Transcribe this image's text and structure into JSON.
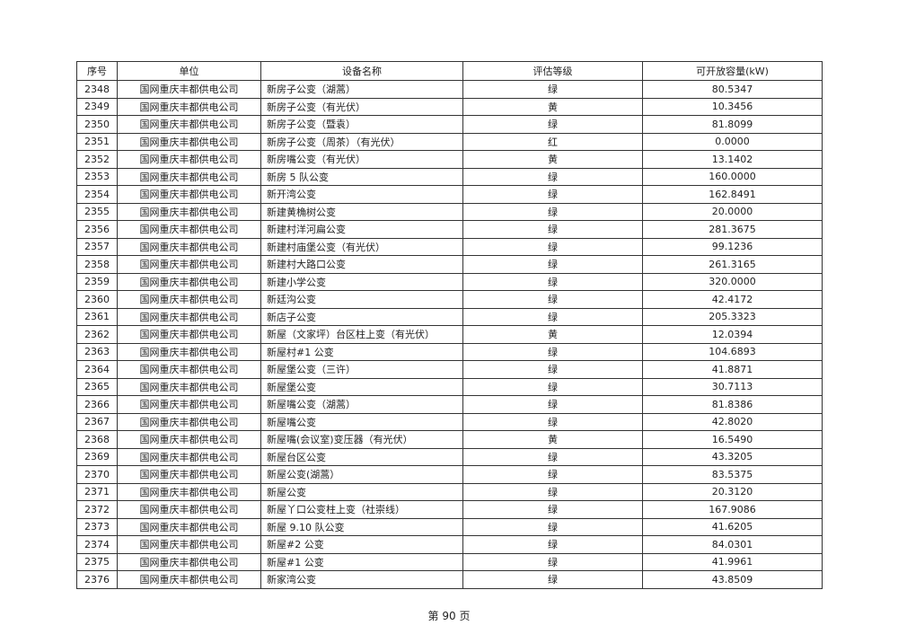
{
  "table": {
    "headers": [
      "序号",
      "单位",
      "设备名称",
      "评估等级",
      "可开放容量(kW)"
    ],
    "rows": [
      [
        "2348",
        "国网重庆丰都供电公司",
        "新房子公变（湖蒿）",
        "绿",
        "80.5347"
      ],
      [
        "2349",
        "国网重庆丰都供电公司",
        "新房子公变（有光伏）",
        "黄",
        "10.3456"
      ],
      [
        "2350",
        "国网重庆丰都供电公司",
        "新房子公变（暨袁）",
        "绿",
        "81.8099"
      ],
      [
        "2351",
        "国网重庆丰都供电公司",
        "新房子公变（周茶）（有光伏）",
        "红",
        "0.0000"
      ],
      [
        "2352",
        "国网重庆丰都供电公司",
        "新房嘴公变（有光伏）",
        "黄",
        "13.1402"
      ],
      [
        "2353",
        "国网重庆丰都供电公司",
        "新房 5 队公变",
        "绿",
        "160.0000"
      ],
      [
        "2354",
        "国网重庆丰都供电公司",
        "新开湾公变",
        "绿",
        "162.8491"
      ],
      [
        "2355",
        "国网重庆丰都供电公司",
        "新建黄桷树公变",
        "绿",
        "20.0000"
      ],
      [
        "2356",
        "国网重庆丰都供电公司",
        "新建村洋河扁公变",
        "绿",
        "281.3675"
      ],
      [
        "2357",
        "国网重庆丰都供电公司",
        "新建村庙堡公变（有光伏）",
        "绿",
        "99.1236"
      ],
      [
        "2358",
        "国网重庆丰都供电公司",
        "新建村大路口公变",
        "绿",
        "261.3165"
      ],
      [
        "2359",
        "国网重庆丰都供电公司",
        "新建小学公变",
        "绿",
        "320.0000"
      ],
      [
        "2360",
        "国网重庆丰都供电公司",
        "新廷沟公变",
        "绿",
        "42.4172"
      ],
      [
        "2361",
        "国网重庆丰都供电公司",
        "新店子公变",
        "绿",
        "205.3323"
      ],
      [
        "2362",
        "国网重庆丰都供电公司",
        "新屋（文家坪）台区柱上变（有光伏）",
        "黄",
        "12.0394"
      ],
      [
        "2363",
        "国网重庆丰都供电公司",
        "新屋村#1 公变",
        "绿",
        "104.6893"
      ],
      [
        "2364",
        "国网重庆丰都供电公司",
        "新屋堡公变（三许）",
        "绿",
        "41.8871"
      ],
      [
        "2365",
        "国网重庆丰都供电公司",
        "新屋堡公变",
        "绿",
        "30.7113"
      ],
      [
        "2366",
        "国网重庆丰都供电公司",
        "新屋嘴公变（湖蒿）",
        "绿",
        "81.8386"
      ],
      [
        "2367",
        "国网重庆丰都供电公司",
        "新屋嘴公变",
        "绿",
        "42.8020"
      ],
      [
        "2368",
        "国网重庆丰都供电公司",
        "新屋嘴(会议室)变压器（有光伏）",
        "黄",
        "16.5490"
      ],
      [
        "2369",
        "国网重庆丰都供电公司",
        "新屋台区公变",
        "绿",
        "43.3205"
      ],
      [
        "2370",
        "国网重庆丰都供电公司",
        "新屋公变(湖蒿）",
        "绿",
        "83.5375"
      ],
      [
        "2371",
        "国网重庆丰都供电公司",
        "新屋公变",
        "绿",
        "20.3120"
      ],
      [
        "2372",
        "国网重庆丰都供电公司",
        "新屋丫口公变柱上变（社崇线）",
        "绿",
        "167.9086"
      ],
      [
        "2373",
        "国网重庆丰都供电公司",
        "新屋 9.10 队公变",
        "绿",
        "41.6205"
      ],
      [
        "2374",
        "国网重庆丰都供电公司",
        "新屋#2 公变",
        "绿",
        "84.0301"
      ],
      [
        "2375",
        "国网重庆丰都供电公司",
        "新屋#1 公变",
        "绿",
        "41.9961"
      ],
      [
        "2376",
        "国网重庆丰都供电公司",
        "新家湾公变",
        "绿",
        "43.8509"
      ]
    ]
  },
  "footer": {
    "page_label": "第 90 页"
  }
}
